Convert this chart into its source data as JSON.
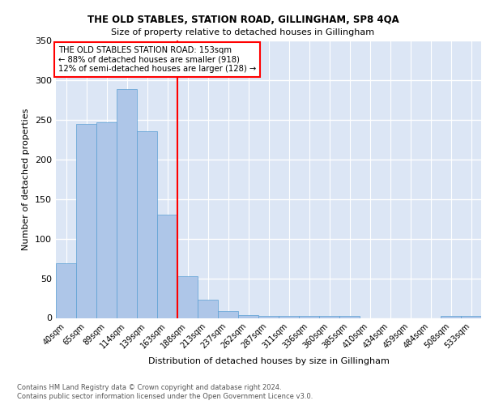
{
  "title1": "THE OLD STABLES, STATION ROAD, GILLINGHAM, SP8 4QA",
  "title2": "Size of property relative to detached houses in Gillingham",
  "xlabel": "Distribution of detached houses by size in Gillingham",
  "ylabel": "Number of detached properties",
  "categories": [
    "40sqm",
    "65sqm",
    "89sqm",
    "114sqm",
    "139sqm",
    "163sqm",
    "188sqm",
    "213sqm",
    "237sqm",
    "262sqm",
    "287sqm",
    "311sqm",
    "336sqm",
    "360sqm",
    "385sqm",
    "410sqm",
    "434sqm",
    "459sqm",
    "484sqm",
    "508sqm",
    "533sqm"
  ],
  "values": [
    69,
    245,
    247,
    289,
    236,
    130,
    53,
    23,
    9,
    4,
    3,
    3,
    3,
    3,
    3,
    0,
    0,
    0,
    0,
    3,
    3
  ],
  "bar_color": "#aec6e8",
  "bar_edge_color": "#5a9fd4",
  "background_color": "#dce6f5",
  "grid_color": "#ffffff",
  "red_line_x": 5.5,
  "annotation_title": "THE OLD STABLES STATION ROAD: 153sqm",
  "annotation_line2": "← 88% of detached houses are smaller (918)",
  "annotation_line3": "12% of semi-detached houses are larger (128) →",
  "footer1": "Contains HM Land Registry data © Crown copyright and database right 2024.",
  "footer2": "Contains public sector information licensed under the Open Government Licence v3.0.",
  "ylim": [
    0,
    350
  ],
  "yticks": [
    0,
    50,
    100,
    150,
    200,
    250,
    300,
    350
  ]
}
